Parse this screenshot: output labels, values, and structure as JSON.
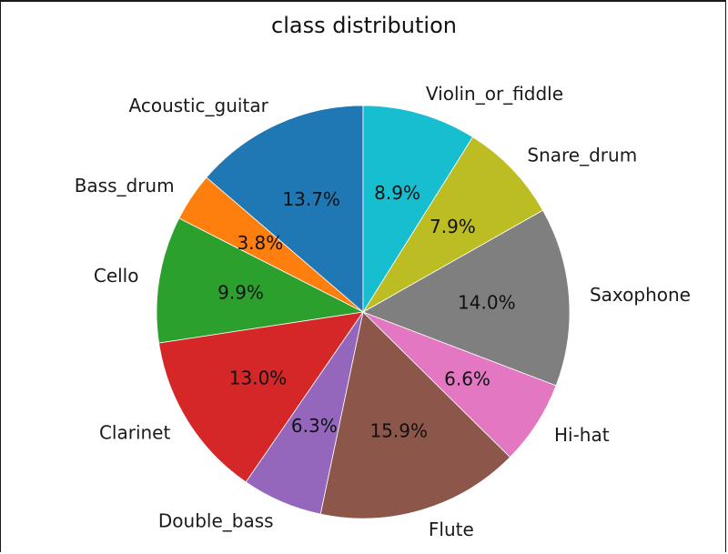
{
  "chart_data": {
    "type": "pie",
    "title": "class distribution",
    "slices": [
      {
        "label": "Acoustic_guitar",
        "value": 13.7,
        "pct_label": "13.7%",
        "color": "#1f77b4"
      },
      {
        "label": "Bass_drum",
        "value": 3.8,
        "pct_label": "3.8%",
        "color": "#ff7f0e"
      },
      {
        "label": "Cello",
        "value": 9.9,
        "pct_label": "9.9%",
        "color": "#2ca02c"
      },
      {
        "label": "Clarinet",
        "value": 13.0,
        "pct_label": "13.0%",
        "color": "#d62728"
      },
      {
        "label": "Double_bass",
        "value": 6.3,
        "pct_label": "6.3%",
        "color": "#9467bd"
      },
      {
        "label": "Flute",
        "value": 15.9,
        "pct_label": "15.9%",
        "color": "#8c564b"
      },
      {
        "label": "Hi-hat",
        "value": 6.6,
        "pct_label": "6.6%",
        "color": "#e377c2"
      },
      {
        "label": "Saxophone",
        "value": 14.0,
        "pct_label": "14.0%",
        "color": "#7f7f7f"
      },
      {
        "label": "Snare_drum",
        "value": 7.9,
        "pct_label": "7.9%",
        "color": "#bcbd22"
      },
      {
        "label": "Violin_or_fiddle",
        "value": 8.9,
        "pct_label": "8.9%",
        "color": "#17becf"
      }
    ],
    "start_angle_deg": 90,
    "direction": "counterclockwise"
  }
}
